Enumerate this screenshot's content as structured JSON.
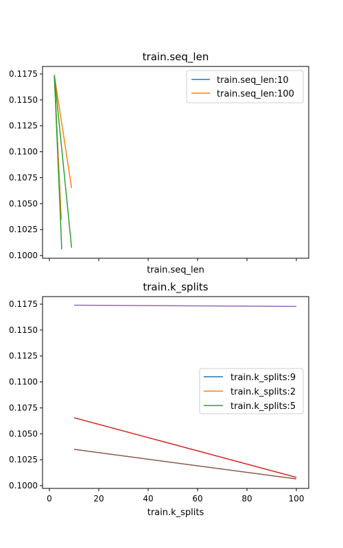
{
  "chart_data": [
    {
      "type": "line",
      "title": "train.seq_len",
      "xlabel": "train.seq_len",
      "ylabel": "",
      "ylim": [
        0.1,
        0.1175
      ],
      "yticks": [
        "0.1000",
        "0.1025",
        "0.1050",
        "0.1075",
        "0.1100",
        "0.1125",
        "0.1150",
        "0.1175"
      ],
      "xticks_labeled": false,
      "legend": {
        "placement": "upper right",
        "entries": [
          {
            "label": "train.seq_len:10",
            "color": "#1f77b4"
          },
          {
            "label": "train.seq_len:100",
            "color": "#ff7f0e"
          }
        ]
      },
      "series": [
        {
          "color": "#1f77b4",
          "points": [
            [
              2,
              0.1174
            ],
            [
              4.8,
              0.10345
            ]
          ]
        },
        {
          "color": "#ff7f0e",
          "points": [
            [
              2,
              0.1174
            ],
            [
              4.8,
              0.10345
            ]
          ]
        },
        {
          "color": "#ff7f0e",
          "points": [
            [
              2,
              0.1174
            ],
            [
              9,
              0.1065
            ]
          ]
        },
        {
          "color": "#2ca02c",
          "points": [
            [
              2,
              0.1174
            ],
            [
              5,
              0.1006
            ]
          ]
        },
        {
          "color": "#2ca02c",
          "points": [
            [
              2,
              0.1174
            ],
            [
              9,
              0.10075
            ]
          ]
        }
      ]
    },
    {
      "type": "line",
      "title": "train.k_splits",
      "xlabel": "train.k_splits",
      "ylabel": "",
      "ylim": [
        0.1,
        0.1175
      ],
      "yticks": [
        "0.1000",
        "0.1025",
        "0.1050",
        "0.1075",
        "0.1100",
        "0.1125",
        "0.1150",
        "0.1175"
      ],
      "xticks": [
        "0",
        "20",
        "40",
        "60",
        "80",
        "100"
      ],
      "legend": {
        "placement": "center right",
        "entries": [
          {
            "label": "train.k_splits:9",
            "color": "#1f77b4"
          },
          {
            "label": "train.k_splits:2",
            "color": "#ff7f0e"
          },
          {
            "label": "train.k_splits:5",
            "color": "#2ca02c"
          }
        ]
      },
      "series": [
        {
          "color": "#9467bd",
          "points": [
            [
              10,
              0.1174
            ],
            [
              100,
              0.11728
            ]
          ]
        },
        {
          "color": "#d62728",
          "points": [
            [
              10,
              0.10655
            ],
            [
              100,
              0.1008
            ]
          ]
        },
        {
          "color": "#8c564b",
          "points": [
            [
              10,
              0.1035
            ],
            [
              100,
              0.10065
            ]
          ]
        }
      ]
    }
  ]
}
